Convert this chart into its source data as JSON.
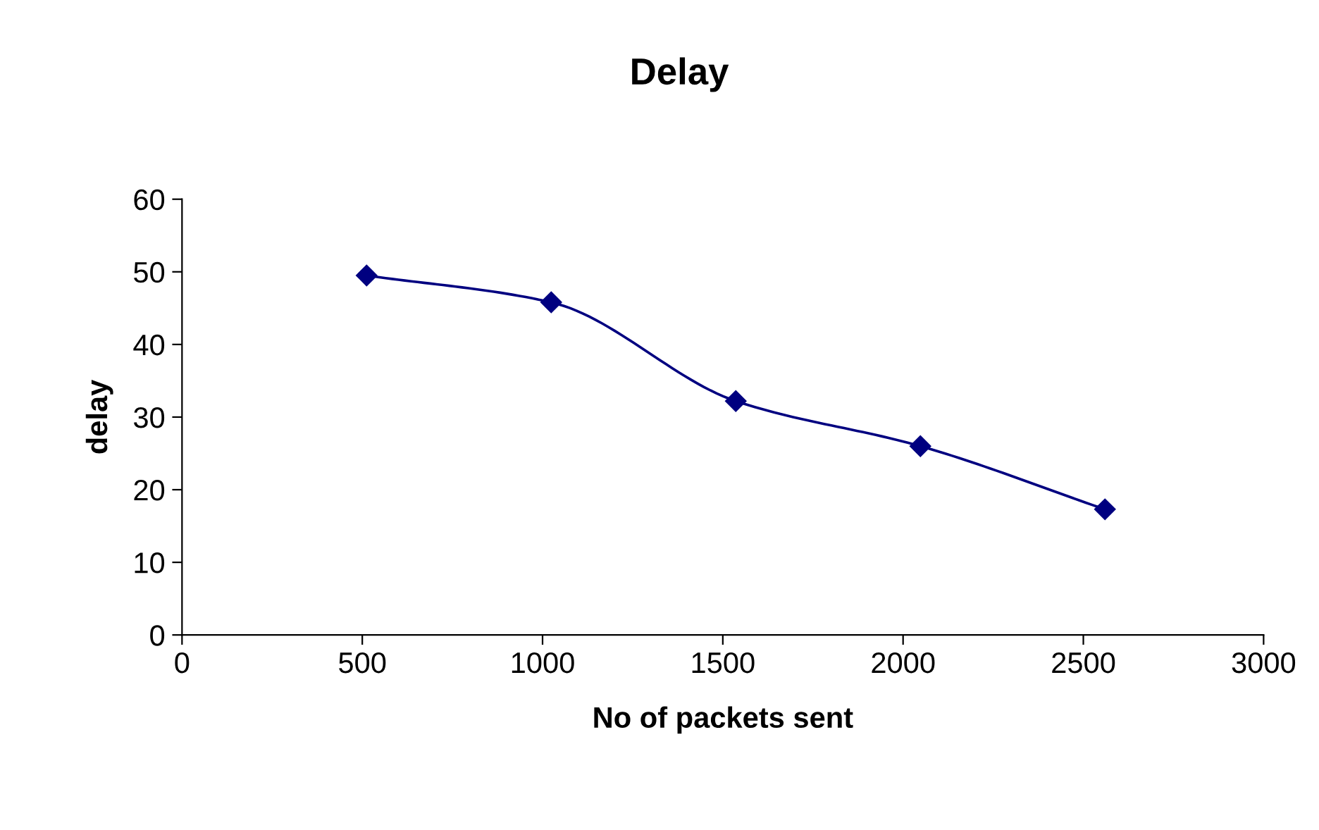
{
  "chart_data": {
    "type": "line",
    "title": "Delay",
    "xlabel": "No of packets sent",
    "ylabel": "delay",
    "x": [
      512,
      1024,
      1536,
      2048,
      2560
    ],
    "series": [
      {
        "color": "#000080",
        "values": [
          49.5,
          45.8,
          32.2,
          26,
          17.3
        ]
      }
    ],
    "xlim": [
      0,
      3000
    ],
    "xticks": [
      0,
      500,
      1000,
      1500,
      2000,
      2500,
      3000
    ],
    "ylim": [
      0,
      60
    ],
    "yticks": [
      0,
      10,
      20,
      30,
      40,
      50,
      60
    ],
    "grid": false,
    "legend": false,
    "marker": "diamond",
    "line_style": "solid"
  }
}
